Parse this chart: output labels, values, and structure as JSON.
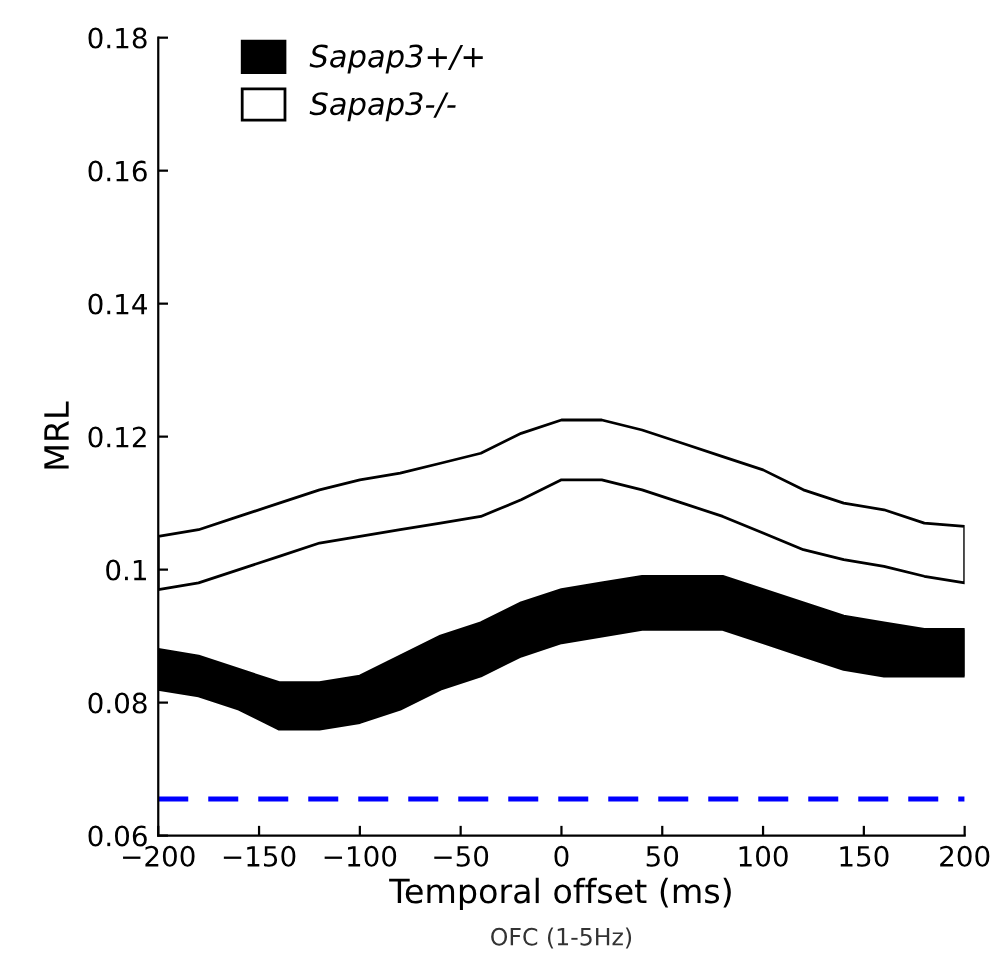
{
  "chart_data": {
    "type": "line",
    "xlabel": "Temporal offset (ms)",
    "ylabel": "MRL",
    "annotations": [
      "OFC (1-5Hz)"
    ],
    "x": [
      -200,
      -180,
      -160,
      -140,
      -120,
      -100,
      -80,
      -60,
      -40,
      -20,
      0,
      20,
      40,
      60,
      80,
      100,
      120,
      140,
      160,
      180,
      200
    ],
    "series": [
      {
        "name": "Sapap3+/+",
        "color": "#000000",
        "values": [
          null,
          null,
          null,
          null,
          null,
          null,
          null,
          null,
          null,
          null,
          null,
          null,
          null,
          null,
          null,
          null,
          null,
          null,
          null,
          null,
          null
        ],
        "lower": [
          0.082,
          0.081,
          0.079,
          0.076,
          0.076,
          0.077,
          0.079,
          0.082,
          0.084,
          0.087,
          0.089,
          0.09,
          0.091,
          0.091,
          0.091,
          0.089,
          0.087,
          0.085,
          0.084,
          0.084,
          0.084
        ],
        "upper": [
          0.088,
          0.087,
          0.085,
          0.083,
          0.083,
          0.084,
          0.087,
          0.09,
          0.092,
          0.095,
          0.097,
          0.098,
          0.099,
          0.099,
          0.099,
          0.097,
          0.095,
          0.093,
          0.092,
          0.091,
          0.091
        ]
      },
      {
        "name": "Sapap3-/-",
        "color": "#ffffff",
        "values": [
          null,
          null,
          null,
          null,
          null,
          null,
          null,
          null,
          null,
          null,
          null,
          null,
          null,
          null,
          null,
          null,
          null,
          null,
          null,
          null,
          null
        ],
        "lower": [
          0.097,
          0.098,
          0.1,
          0.102,
          0.104,
          0.105,
          0.106,
          0.107,
          0.108,
          0.1105,
          0.1135,
          0.1135,
          0.112,
          0.11,
          0.108,
          0.1055,
          0.103,
          0.1015,
          0.1005,
          0.099,
          0.098
        ],
        "upper": [
          0.105,
          0.106,
          0.108,
          0.11,
          0.112,
          0.1135,
          0.1145,
          0.116,
          0.1175,
          0.1205,
          0.1225,
          0.1225,
          0.121,
          0.119,
          0.117,
          0.115,
          0.112,
          0.11,
          0.109,
          0.107,
          0.1065
        ]
      }
    ],
    "xlim": [
      -200,
      200
    ],
    "ylim": [
      0.06,
      0.18
    ],
    "xticks": [
      {
        "value": -200,
        "label": "−200"
      },
      {
        "value": -150,
        "label": "−150"
      },
      {
        "value": -100,
        "label": "−100"
      },
      {
        "value": -50,
        "label": "−50"
      },
      0,
      50,
      100,
      150,
      200
    ],
    "yticks": [
      0.06,
      0.08,
      0.1,
      0.12,
      0.14,
      0.16,
      0.18
    ],
    "ref_lines": [
      {
        "axis": "y",
        "value": 0.0655,
        "color": "#0000ff",
        "line_style": "dashed"
      }
    ],
    "legend": "top left",
    "grid": false
  }
}
